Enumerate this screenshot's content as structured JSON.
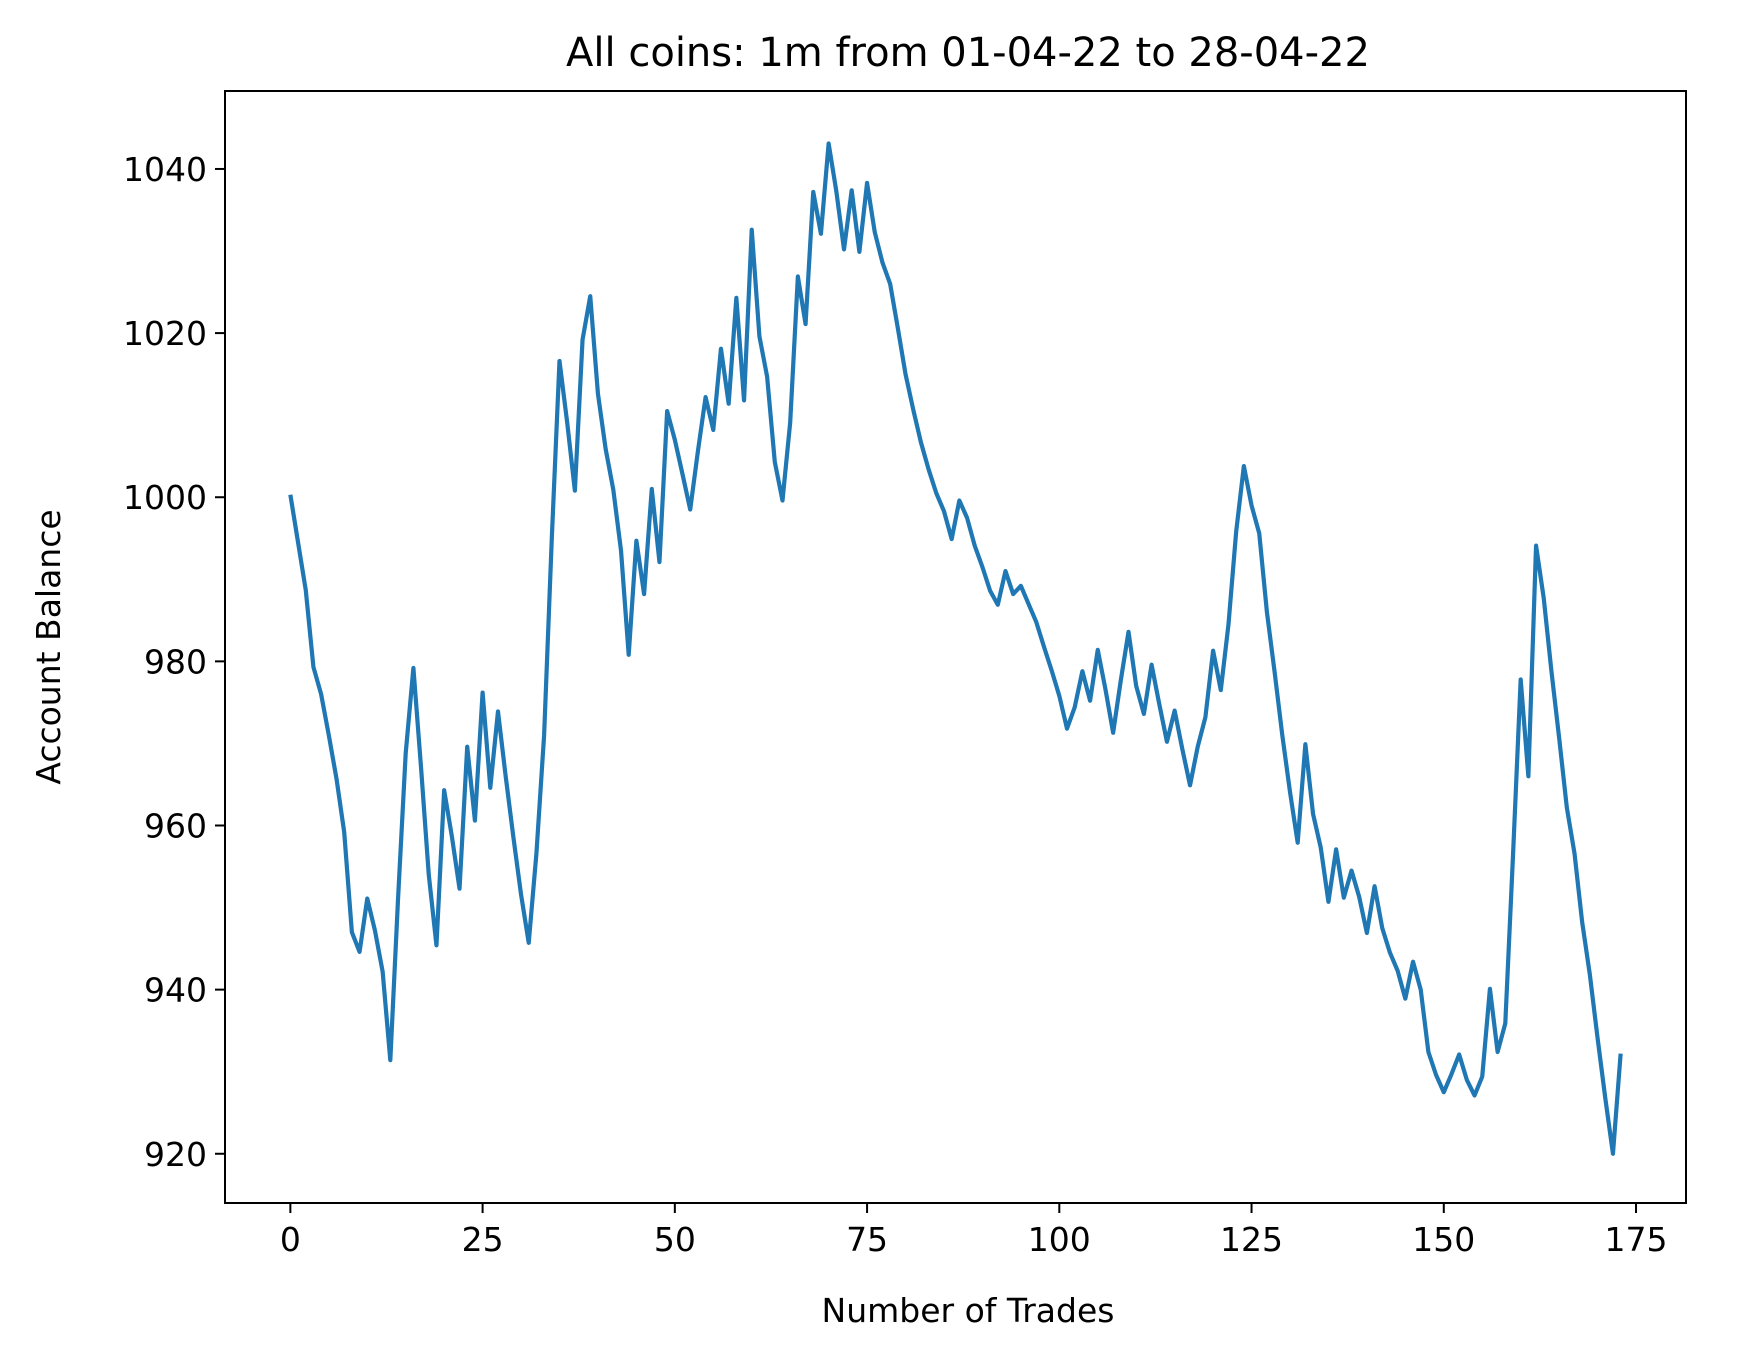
{
  "chart_data": {
    "type": "line",
    "title": "All coins: 1m from 01-04-22 to 28-04-22",
    "xlabel": "Number of Trades",
    "ylabel": "Account Balance",
    "xlim": [
      -8.5,
      181.5
    ],
    "ylim": [
      914,
      1049.5
    ],
    "xticks": [
      0,
      25,
      50,
      75,
      100,
      125,
      150,
      175
    ],
    "xtick_labels": [
      "0",
      "25",
      "50",
      "75",
      "100",
      "125",
      "150",
      "175"
    ],
    "yticks": [
      920,
      940,
      960,
      980,
      1000,
      1020,
      1040
    ],
    "ytick_labels": [
      "920",
      "940",
      "960",
      "980",
      "1000",
      "1020",
      "1040"
    ],
    "grid": false,
    "legend": "none",
    "series": [
      {
        "color": "#1f77b4",
        "x": [
          0,
          1,
          2,
          3,
          4,
          5,
          6,
          7,
          8,
          9,
          10,
          11,
          12,
          13,
          14,
          15,
          16,
          17,
          18,
          19,
          20,
          21,
          22,
          23,
          24,
          25,
          26,
          27,
          28,
          29,
          30,
          31,
          32,
          33,
          34,
          35,
          36,
          37,
          38,
          39,
          40,
          41,
          42,
          43,
          44,
          45,
          46,
          47,
          48,
          49,
          50,
          51,
          52,
          53,
          54,
          55,
          56,
          57,
          58,
          59,
          60,
          61,
          62,
          63,
          64,
          65,
          66,
          67,
          68,
          69,
          70,
          71,
          72,
          73,
          74,
          75,
          76,
          77,
          78,
          79,
          80,
          81,
          82,
          83,
          84,
          85,
          86,
          87,
          88,
          89,
          90,
          91,
          92,
          93,
          94,
          95,
          96,
          97,
          98,
          99,
          100,
          101,
          102,
          103,
          104,
          105,
          106,
          107,
          108,
          109,
          110,
          111,
          112,
          113,
          114,
          115,
          116,
          117,
          118,
          119,
          120,
          121,
          122,
          123,
          124,
          125,
          126,
          127,
          128,
          129,
          130,
          131,
          132,
          133,
          134,
          135,
          136,
          137,
          138,
          139,
          140,
          141,
          142,
          143,
          144,
          145,
          146,
          147,
          148,
          149,
          150,
          151,
          152,
          153,
          154,
          155,
          156,
          157,
          158,
          159,
          160,
          161,
          162,
          163,
          164,
          165,
          166,
          167,
          168,
          169,
          170,
          171,
          172,
          173
        ],
        "values": [
          1000.3,
          994.5,
          988.7,
          979.3,
          976.0,
          971.0,
          965.7,
          959.2,
          947.0,
          944.6,
          951.1,
          947.2,
          942.2,
          931.4,
          951.0,
          968.8,
          979.2,
          967.0,
          954.0,
          945.4,
          964.3,
          958.7,
          952.3,
          969.6,
          960.6,
          976.2,
          964.6,
          973.9,
          966.0,
          958.6,
          951.6,
          945.7,
          956.6,
          971.0,
          995.0,
          1016.6,
          1009.1,
          1000.8,
          1019.2,
          1024.5,
          1012.6,
          1005.9,
          1000.9,
          993.5,
          980.8,
          994.7,
          988.2,
          1001.0,
          992.1,
          1010.5,
          1007.0,
          1002.8,
          998.5,
          1005.6,
          1012.2,
          1008.2,
          1018.1,
          1011.4,
          1024.3,
          1011.8,
          1032.6,
          1019.6,
          1014.7,
          1004.3,
          999.6,
          1009.1,
          1026.9,
          1021.1,
          1037.2,
          1032.1,
          1043.1,
          1037.3,
          1030.2,
          1037.4,
          1029.9,
          1038.3,
          1032.3,
          1028.6,
          1026.0,
          1020.6,
          1015.0,
          1010.7,
          1006.7,
          1003.4,
          1000.5,
          998.3,
          994.9,
          999.6,
          997.5,
          994.1,
          991.5,
          988.6,
          986.9,
          991.0,
          988.2,
          989.2,
          987.0,
          984.8,
          981.8,
          978.9,
          975.8,
          971.8,
          974.4,
          978.8,
          975.2,
          981.4,
          976.6,
          971.3,
          977.7,
          983.6,
          977.0,
          973.6,
          979.6,
          974.8,
          970.2,
          974.0,
          969.3,
          964.9,
          969.6,
          973.2,
          981.3,
          976.5,
          984.5,
          995.8,
          1003.8,
          999.0,
          995.6,
          986.0,
          978.7,
          971.0,
          964.1,
          957.9,
          969.9,
          961.4,
          957.3,
          950.7,
          957.1,
          951.2,
          954.5,
          951.3,
          946.9,
          952.6,
          947.5,
          944.5,
          942.3,
          938.9,
          943.4,
          940.0,
          932.4,
          929.6,
          927.5,
          929.7,
          932.1,
          929.0,
          927.1,
          929.4,
          940.1,
          932.4,
          935.9,
          956.3,
          977.8,
          966.0,
          994.1,
          987.7,
          978.8,
          970.7,
          962.2,
          956.6,
          948.2,
          941.8,
          934.1,
          926.8,
          920.0,
          932.2
        ]
      }
    ]
  }
}
